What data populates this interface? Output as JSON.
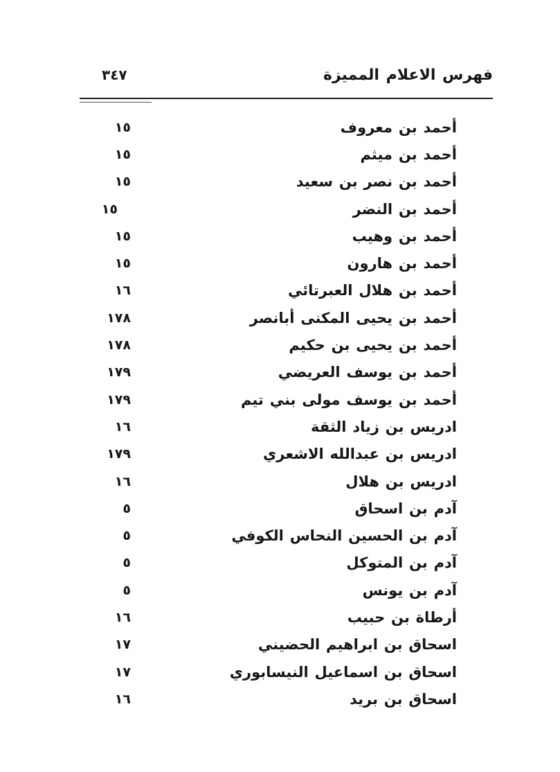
{
  "index": {
    "header": {
      "title": "فهرس الاعلام المميزة",
      "folio": "٣٤٧"
    },
    "entries": [
      {
        "name": "أحمد بن معروف",
        "page": "١٥"
      },
      {
        "name": "أحمد بن ميثم",
        "page": "١٥"
      },
      {
        "name": "أحمد بن نصر بن سعيد",
        "page": "١٥"
      },
      {
        "name": "أحمد بن النضر",
        "page": "١٥"
      },
      {
        "name": "أحمد بن وهيب",
        "page": "١٥"
      },
      {
        "name": "أحمد بن هارون",
        "page": "١٥"
      },
      {
        "name": "أحمد بن هلال العبرتائي",
        "page": "١٦"
      },
      {
        "name": "أحمد بن يحيى المكنى أبانصر",
        "page": "١٧٨"
      },
      {
        "name": "أحمد بن يحيى بن حكيم",
        "page": "١٧٨"
      },
      {
        "name": "أحمد بن يوسف العريضي",
        "page": "١٧٩"
      },
      {
        "name": "أحمد بن يوسف مولى بني تيم",
        "page": "١٧٩"
      },
      {
        "name": "ادريس بن زياد الثقة",
        "page": "١٦"
      },
      {
        "name": "ادريس بن عبدالله الاشعري",
        "page": "١٧٩"
      },
      {
        "name": "ادريس بن هلال",
        "page": "١٦"
      },
      {
        "name": "آدم بن اسحاق",
        "page": "٥"
      },
      {
        "name": "آدم بن الحسين النحاس الكوفي",
        "page": "٥"
      },
      {
        "name": "آدم بن المتوكل",
        "page": "٥"
      },
      {
        "name": "آدم بن يونس",
        "page": "٥"
      },
      {
        "name": "أرطاة بن حبيب",
        "page": "١٦"
      },
      {
        "name": "اسحاق بن ابراهيم الحضيني",
        "page": "١٧"
      },
      {
        "name": "اسحاق بن اسماعيل النيسابوري",
        "page": "١٧"
      },
      {
        "name": "اسحاق بن بريد",
        "page": "١٦"
      }
    ]
  }
}
